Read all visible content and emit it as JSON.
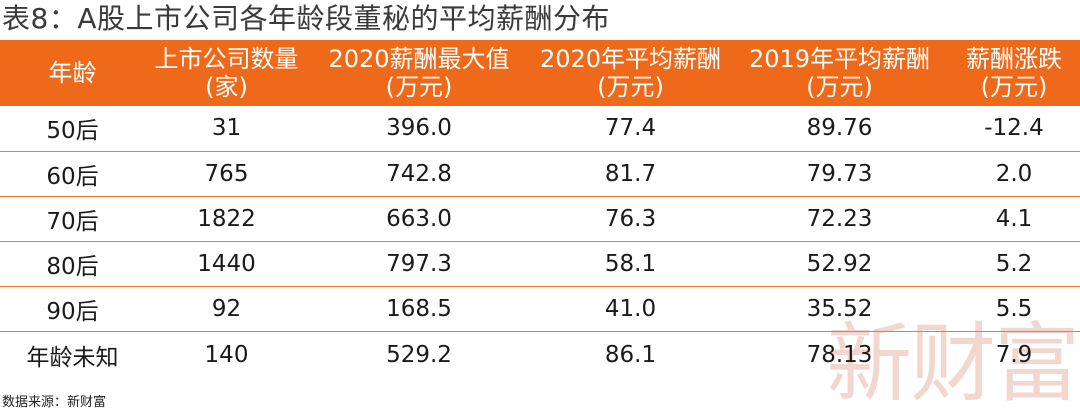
{
  "title": "表8：A股上市公司各年龄段董秘的平均薪酬分布",
  "table": {
    "headers": [
      {
        "label": "年龄",
        "unit": ""
      },
      {
        "label": "上市公司数量",
        "unit": "(家)"
      },
      {
        "label": "2020薪酬最大值",
        "unit": "(万元)"
      },
      {
        "label": "2020年平均薪酬",
        "unit": "(万元)"
      },
      {
        "label": "2019年平均薪酬",
        "unit": "(万元)"
      },
      {
        "label": "薪酬涨跌",
        "unit": "(万元)"
      }
    ],
    "rows": [
      [
        "50后",
        "31",
        "396.0",
        "77.4",
        "89.76",
        "-12.4"
      ],
      [
        "60后",
        "765",
        "742.8",
        "81.7",
        "79.73",
        "2.0"
      ],
      [
        "70后",
        "1822",
        "663.0",
        "76.3",
        "72.23",
        "4.1"
      ],
      [
        "80后",
        "1440",
        "797.3",
        "58.1",
        "52.92",
        "5.2"
      ],
      [
        "90后",
        "92",
        "168.5",
        "41.0",
        "35.52",
        "5.5"
      ],
      [
        "年龄未知",
        "140",
        "529.2",
        "86.1",
        "78.13",
        "7.9"
      ]
    ]
  },
  "source": "数据来源：新财富",
  "watermark": "新财富",
  "colors": {
    "header_bg": "#ee6a1a",
    "header_text": "#ffffff",
    "row_divider": "#ee7a2a",
    "watermark": "#f1d1c7"
  }
}
